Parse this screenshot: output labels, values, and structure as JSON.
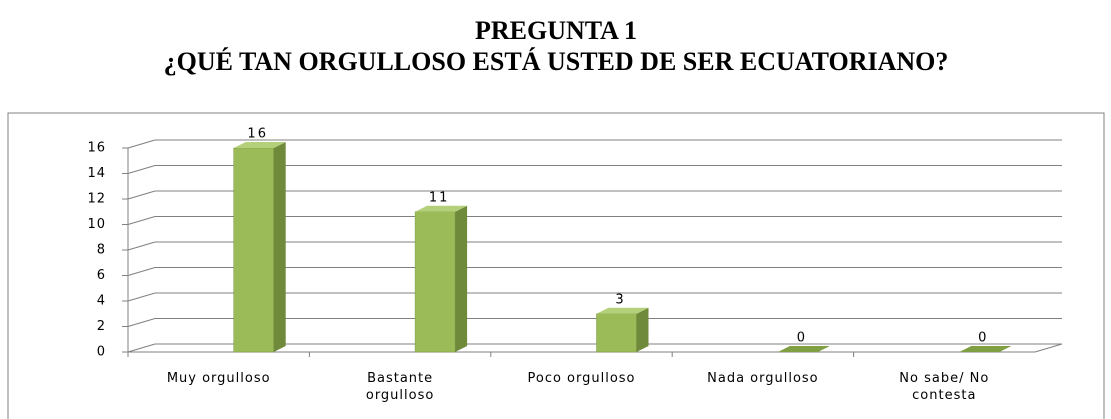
{
  "chart_data": {
    "type": "bar",
    "title": [
      "PREGUNTA 1",
      "¿QUÉ TAN ORGULLOSO ESTÁ USTED DE SER ECUATORIANO?"
    ],
    "categories": [
      "Muy orgulloso",
      "Bastante orgulloso",
      "Poco orgulloso",
      "Nada orgulloso",
      "No sabe/ No contesta"
    ],
    "values": [
      16,
      11,
      3,
      0,
      0
    ],
    "color": "#9bbb59",
    "ylim": [
      0,
      16
    ],
    "yticks": [
      0,
      2,
      4,
      6,
      8,
      10,
      12,
      14,
      16
    ],
    "grid": true,
    "three_d": true
  }
}
